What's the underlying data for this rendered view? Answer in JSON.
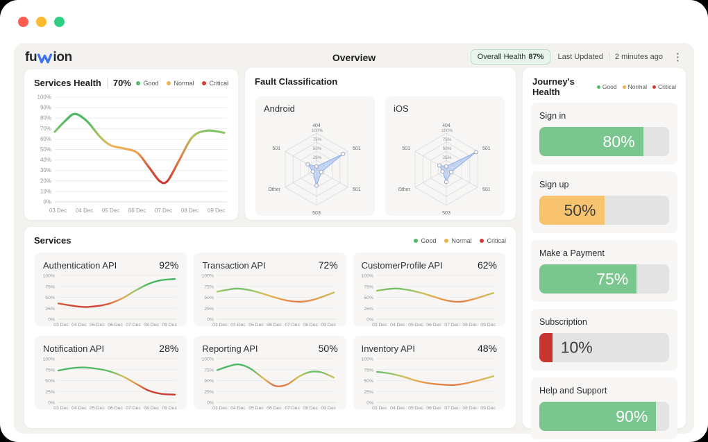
{
  "header": {
    "logo_pre": "fu",
    "logo_post": "ion",
    "logo_accent_color": "#3f72f0",
    "title": "Overview",
    "overall_health_label": "Overall Health",
    "overall_health_value": "87%",
    "last_updated_label": "Last Updated",
    "last_updated_value": "2 minutes ago",
    "menu_icon": "kebab-menu-icon"
  },
  "legend": {
    "items": [
      {
        "label": "Good",
        "color": "#55b968"
      },
      {
        "label": "Normal",
        "color": "#f2b04b"
      },
      {
        "label": "Critical",
        "color": "#d63c34"
      }
    ]
  },
  "dates": [
    "03 Dec",
    "04 Dec",
    "05 Dec",
    "06 Dec",
    "07 Dec",
    "08 Dec",
    "09 Dec"
  ],
  "palette": {
    "line_gradient_stops": [
      {
        "v": 0,
        "c": "#c7332b"
      },
      {
        "v": 30,
        "c": "#ce4136"
      },
      {
        "v": 45,
        "c": "#e89a4d"
      },
      {
        "v": 53,
        "c": "#ecb457"
      },
      {
        "v": 60,
        "c": "#c9c25d"
      },
      {
        "v": 66,
        "c": "#8fc76a"
      },
      {
        "v": 73,
        "c": "#54b967"
      },
      {
        "v": 100,
        "c": "#3eb25f"
      }
    ],
    "grid_color": "#ececec",
    "axis_color": "#dddddd",
    "tick_text_color": "#979797"
  },
  "services_health": {
    "title": "Services Health",
    "value": "70%",
    "chart": {
      "type": "line",
      "x_domain": [
        2.88,
        9.3
      ],
      "x": [
        2.88,
        3.3,
        3.65,
        4.1,
        4.6,
        5.0,
        5.5,
        6.0,
        6.45,
        6.85,
        7.15,
        7.6,
        8.1,
        8.65,
        9.3
      ],
      "y": [
        67,
        78,
        84,
        77,
        62,
        54,
        51,
        47,
        33,
        20,
        20,
        40,
        62,
        68,
        66
      ],
      "y_ticks": [
        100,
        90,
        80,
        70,
        60,
        50,
        40,
        30,
        20,
        10,
        0
      ]
    }
  },
  "fault_classification": {
    "title": "Fault Classification",
    "axes": [
      "404",
      "501",
      "501",
      "503",
      "Other",
      "501"
    ],
    "level_labels": [
      "100%",
      "75%",
      "50%",
      "25%"
    ],
    "levels": [
      100,
      75,
      50,
      25
    ],
    "fill_color": "rgba(151,183,240,0.5)",
    "stroke_color": "#86ade9",
    "radars": [
      {
        "title": "Android",
        "values": [
          8,
          85,
          15,
          45,
          12,
          28
        ]
      },
      {
        "title": "iOS",
        "values": [
          8,
          95,
          15,
          35,
          12,
          22
        ]
      }
    ]
  },
  "journeys_health": {
    "title": "Journey's Health",
    "track_color": "#e3e3e3",
    "bars": [
      {
        "label": "Sign in",
        "value": 80,
        "display": "80%",
        "fill": "#79c78f",
        "text_color": "#ffffff"
      },
      {
        "label": "Sign up",
        "value": 50,
        "display": "50%",
        "fill": "#f8c36e",
        "text_color": "#3e3e3e"
      },
      {
        "label": "Make a Payment",
        "value": 75,
        "display": "75%",
        "fill": "#79c78f",
        "text_color": "#ffffff"
      },
      {
        "label": "Subscription",
        "value": 10,
        "display": "10%",
        "fill": "#c9342e",
        "text_color": "#3e3e3e"
      },
      {
        "label": "Help and Support",
        "value": 90,
        "display": "90%",
        "fill": "#79c78f",
        "text_color": "#ffffff"
      }
    ]
  },
  "services": {
    "title": "Services",
    "y_ticks": [
      100,
      75,
      50,
      25,
      0
    ],
    "x_domain": [
      2.85,
      9.3
    ],
    "items": [
      {
        "name": "Authentication API",
        "value": "92%",
        "x": [
          2.85,
          3.6,
          4.3,
          5.0,
          5.7,
          6.4,
          7.1,
          7.8,
          8.5,
          9.3
        ],
        "y": [
          36,
          31,
          28,
          30,
          36,
          48,
          65,
          80,
          89,
          92
        ]
      },
      {
        "name": "Transaction API",
        "value": "72%",
        "x": [
          2.85,
          3.5,
          4.0,
          4.7,
          5.4,
          6.1,
          6.8,
          7.5,
          8.2,
          9.3
        ],
        "y": [
          63,
          68,
          70,
          66,
          58,
          49,
          42,
          40,
          45,
          61
        ]
      },
      {
        "name": "CustomerProfile API",
        "value": "62%",
        "x": [
          2.85,
          3.5,
          4.0,
          4.7,
          5.4,
          6.1,
          6.8,
          7.5,
          8.2,
          9.3
        ],
        "y": [
          65,
          69,
          70,
          66,
          59,
          50,
          42,
          40,
          46,
          60
        ]
      },
      {
        "name": "Notification API",
        "value": "28%",
        "x": [
          2.85,
          3.5,
          4.2,
          5.0,
          5.7,
          6.4,
          7.1,
          7.8,
          8.5,
          9.3
        ],
        "y": [
          73,
          78,
          80,
          77,
          71,
          60,
          44,
          28,
          20,
          18
        ]
      },
      {
        "name": "Reporting API",
        "value": "50%",
        "x": [
          2.85,
          3.5,
          4.05,
          4.7,
          5.4,
          6.05,
          6.7,
          7.4,
          8.0,
          8.6,
          9.3
        ],
        "y": [
          74,
          83,
          87,
          77,
          55,
          38,
          41,
          60,
          70,
          69,
          57
        ]
      },
      {
        "name": "Inventory API",
        "value": "48%",
        "x": [
          2.85,
          3.6,
          4.3,
          5.0,
          5.7,
          6.4,
          7.1,
          7.8,
          8.5,
          9.3
        ],
        "y": [
          70,
          66,
          59,
          50,
          44,
          41,
          40,
          44,
          51,
          60
        ]
      }
    ]
  }
}
